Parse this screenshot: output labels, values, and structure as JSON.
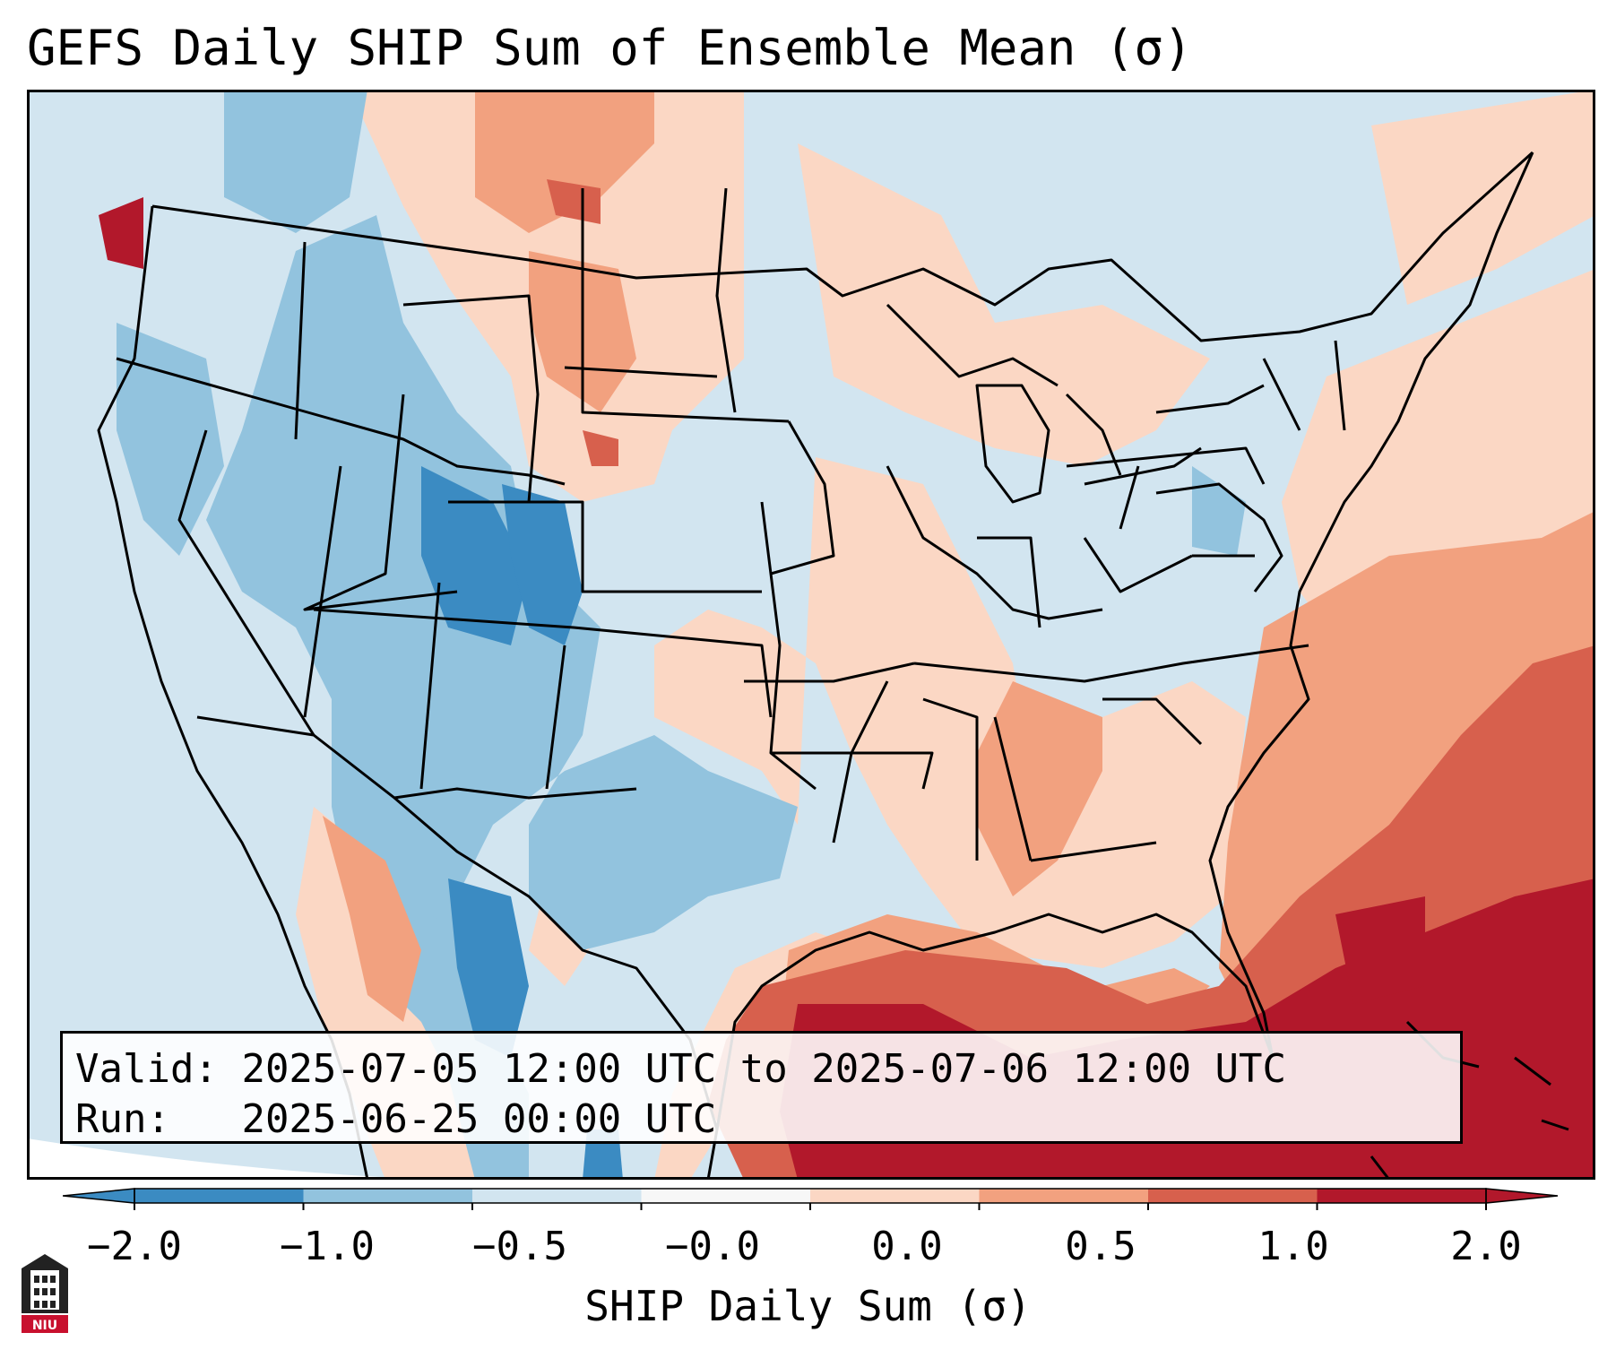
{
  "title": "GEFS Daily SHIP Sum of Ensemble Mean (σ)",
  "info": {
    "valid_label": "Valid:",
    "valid_value": "2025-07-05 12:00 UTC to 2025-07-06 12:00 UTC",
    "run_label": "Run:",
    "run_value": "2025-06-25 00:00 UTC"
  },
  "colorbar": {
    "label": "SHIP Daily Sum (σ)",
    "ticks": [
      "−2.0",
      "−1.0",
      "−0.5",
      "−0.0",
      "0.0",
      "0.5",
      "1.0",
      "2.0"
    ],
    "colors": [
      "#3b8bc2",
      "#92c3de",
      "#d2e5f0",
      "#f7f7f7",
      "#fbd7c4",
      "#f2a17f",
      "#d7604d",
      "#b2182b"
    ]
  },
  "logo_text": "NIU"
}
